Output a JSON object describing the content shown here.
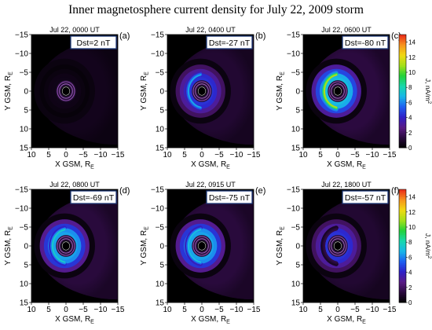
{
  "figure": {
    "title": "Inner magnetosphere current density for July 22, 2009 storm"
  },
  "colors": {
    "background": "#2c0b3e",
    "colormap": [
      "#000000",
      "#2a0a3e",
      "#5a1a85",
      "#2f1fc8",
      "#1e60f2",
      "#18b7e8",
      "#18d8ad",
      "#22d23a",
      "#a3e019",
      "#f0da12",
      "#f7931c",
      "#ea2a1a"
    ]
  },
  "chart_data": [
    {
      "type": "heatmap",
      "panel": "(a)",
      "title": "Jul 22, 0000 UT",
      "dst": "Dst=2 nT",
      "xlabel": "X GSM, R",
      "xlabel_sub": "E",
      "ylabel": "Y GSM, R",
      "ylabel_sub": "E",
      "xlim": [
        10,
        -15
      ],
      "ylim": [
        -15,
        15
      ],
      "xticks": [
        "10",
        "5",
        "0",
        "−5",
        "−10",
        "−15"
      ],
      "yticks": [
        "−15",
        "−10",
        "−5",
        "0",
        "5",
        "10",
        "15"
      ],
      "peak_current_density": 1.0,
      "ring_current_peak": 0.5,
      "partial_ring_peak": 0.0
    },
    {
      "type": "heatmap",
      "panel": "(b)",
      "title": "Jul 22, 0400 UT",
      "dst": "Dst=-27 nT",
      "xlabel": "X GSM, R",
      "xlabel_sub": "E",
      "ylabel": "Y GSM, R",
      "ylabel_sub": "E",
      "xlim": [
        10,
        -15
      ],
      "ylim": [
        -15,
        15
      ],
      "xticks": [
        "10",
        "5",
        "0",
        "−5",
        "−10",
        "−15"
      ],
      "yticks": [
        "−15",
        "−10",
        "−5",
        "0",
        "5",
        "10",
        "15"
      ],
      "peak_current_density": 6.5,
      "ring_current_peak": 4.5,
      "partial_ring_peak": 6.5
    },
    {
      "type": "heatmap",
      "panel": "(c)",
      "title": "Jul 22, 0600 UT",
      "dst": "Dst=-80 nT",
      "xlabel": "X GSM, R",
      "xlabel_sub": "E",
      "ylabel": "Y GSM, R",
      "ylabel_sub": "E",
      "xlim": [
        10,
        -15
      ],
      "ylim": [
        -15,
        15
      ],
      "xticks": [
        "10",
        "5",
        "0",
        "−5",
        "−10",
        "−15"
      ],
      "yticks": [
        "−15",
        "−10",
        "−5",
        "0",
        "5",
        "10",
        "15"
      ],
      "peak_current_density": 11.0,
      "ring_current_peak": 7.0,
      "partial_ring_peak": 11.0
    },
    {
      "type": "heatmap",
      "panel": "(d)",
      "title": "Jul 22, 0800 UT",
      "dst": "Dst=-69 nT",
      "xlabel": "X GSM, R",
      "xlabel_sub": "E",
      "ylabel": "Y GSM, R",
      "ylabel_sub": "E",
      "xlim": [
        10,
        -15
      ],
      "ylim": [
        -15,
        15
      ],
      "xticks": [
        "10",
        "5",
        "0",
        "−5",
        "−10",
        "−15"
      ],
      "yticks": [
        "−15",
        "−10",
        "−5",
        "0",
        "5",
        "10",
        "15"
      ],
      "peak_current_density": 7.5,
      "ring_current_peak": 6.5,
      "partial_ring_peak": 7.5
    },
    {
      "type": "heatmap",
      "panel": "(e)",
      "title": "Jul 22, 0915 UT",
      "dst": "Dst=-75 nT",
      "xlabel": "X GSM, R",
      "xlabel_sub": "E",
      "ylabel": "Y GSM, R",
      "ylabel_sub": "E",
      "xlim": [
        10,
        -15
      ],
      "ylim": [
        -15,
        15
      ],
      "xticks": [
        "10",
        "5",
        "0",
        "−5",
        "−10",
        "−15"
      ],
      "yticks": [
        "−15",
        "−10",
        "−5",
        "0",
        "5",
        "10",
        "15"
      ],
      "peak_current_density": 7.5,
      "ring_current_peak": 6.5,
      "partial_ring_peak": 7.0
    },
    {
      "type": "heatmap",
      "panel": "(f)",
      "title": "Jul 22, 1800 UT",
      "dst": "Dst=-57 nT",
      "xlabel": "X GSM, R",
      "xlabel_sub": "E",
      "ylabel": "Y GSM, R",
      "ylabel_sub": "E",
      "xlim": [
        10,
        -15
      ],
      "ylim": [
        -15,
        15
      ],
      "xticks": [
        "10",
        "5",
        "0",
        "−5",
        "−10",
        "−15"
      ],
      "yticks": [
        "−15",
        "−10",
        "−5",
        "0",
        "5",
        "10",
        "15"
      ],
      "peak_current_density": 4.5,
      "ring_current_peak": 4.5,
      "partial_ring_peak": 1.5
    }
  ],
  "colorbar": {
    "label": "J, nA/m",
    "label_sup": "2",
    "min": 0,
    "max": 15,
    "ticks": [
      "0",
      "2",
      "4",
      "6",
      "8",
      "10",
      "12",
      "14"
    ]
  }
}
